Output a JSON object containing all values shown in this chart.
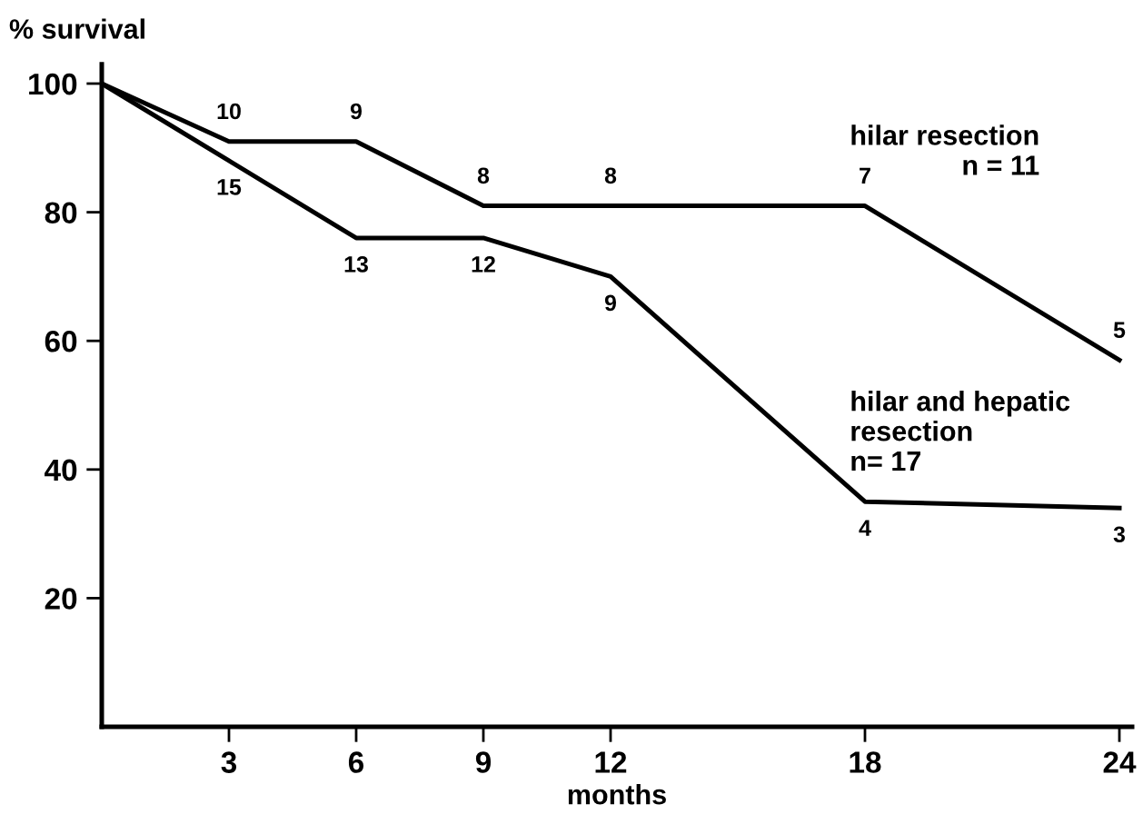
{
  "chart_data": {
    "type": "line",
    "xlabel": "months",
    "ylabel": "% survival",
    "x": [
      0,
      3,
      6,
      9,
      12,
      18,
      24
    ],
    "series": [
      {
        "name": "hilar resection\nn = 11",
        "color": "#000000",
        "values": [
          100,
          91,
          91,
          81,
          81,
          81,
          57
        ]
      },
      {
        "name": "hilar and hepatic\nresection\nn= 17",
        "color": "#000000",
        "values": [
          100,
          88,
          76,
          76,
          70,
          35,
          34
        ]
      }
    ],
    "annotations": [
      {
        "text": "10",
        "x": 3,
        "y": 91
      },
      {
        "text": "9",
        "x": 6,
        "y": 91
      },
      {
        "text": "8",
        "x": 9,
        "y": 81
      },
      {
        "text": "8",
        "x": 12,
        "y": 81
      },
      {
        "text": "7",
        "x": 18,
        "y": 81
      },
      {
        "text": "5",
        "x": 24,
        "y": 57
      },
      {
        "text": "15",
        "x": 3,
        "y": 88
      },
      {
        "text": "13",
        "x": 6,
        "y": 76
      },
      {
        "text": "12",
        "x": 9,
        "y": 76
      },
      {
        "text": "9",
        "x": 12,
        "y": 70
      },
      {
        "text": "4",
        "x": 18,
        "y": 35
      },
      {
        "text": "3",
        "x": 24,
        "y": 34
      }
    ],
    "xlim": [
      0,
      24.3
    ],
    "ylim": [
      0,
      103
    ],
    "xticks": [
      3,
      6,
      9,
      12,
      18,
      24
    ],
    "yticks": [
      20,
      40,
      60,
      80,
      100
    ],
    "grid": false,
    "legend": false,
    "marker": "none",
    "line_style": "solid"
  }
}
